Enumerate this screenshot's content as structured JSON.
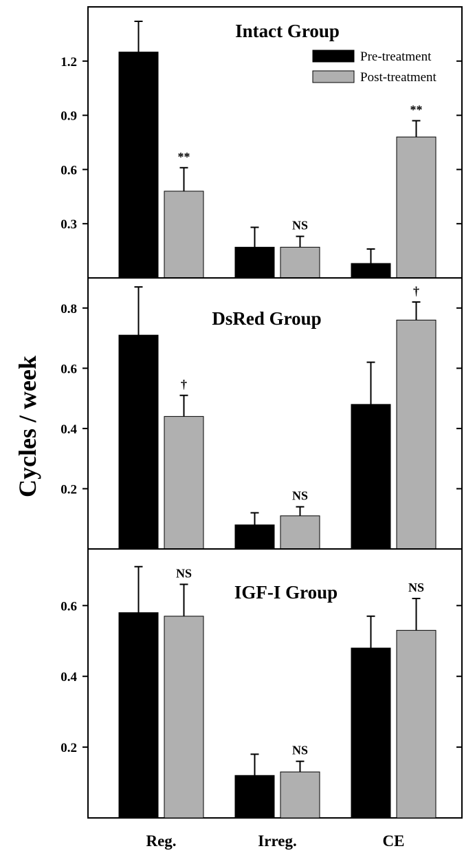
{
  "chart_data": {
    "type": "bar",
    "ylabel": "Cycles / week",
    "categories": [
      "Reg.",
      "Irreg.",
      "CE"
    ],
    "legend": {
      "placement": "top-right",
      "entries": [
        {
          "name": "Pre-treatment",
          "color": "#000000"
        },
        {
          "name": "Post-treatment",
          "color": "#b0b0b0"
        }
      ]
    },
    "panels": [
      {
        "title": "Intact Group",
        "ylim": [
          0,
          1.5
        ],
        "yticks": [
          0.3,
          0.6,
          0.9,
          1.2
        ],
        "ytick_labels": [
          "0.3",
          "0.6",
          "0.9",
          "1.2"
        ],
        "series": [
          {
            "name": "Pre-treatment",
            "values": [
              1.25,
              0.17,
              0.08
            ],
            "errors": [
              0.17,
              0.11,
              0.08
            ]
          },
          {
            "name": "Post-treatment",
            "values": [
              0.48,
              0.17,
              0.78
            ],
            "errors": [
              0.13,
              0.06,
              0.09
            ]
          }
        ],
        "annotations": [
          "**",
          "NS",
          "**"
        ]
      },
      {
        "title": "DsRed Group",
        "ylim": [
          0,
          0.9
        ],
        "yticks": [
          0.2,
          0.4,
          0.6,
          0.8
        ],
        "ytick_labels": [
          "0.2",
          "0.4",
          "0.6",
          "0.8"
        ],
        "series": [
          {
            "name": "Pre-treatment",
            "values": [
              0.71,
              0.08,
              0.48
            ],
            "errors": [
              0.16,
              0.04,
              0.14
            ]
          },
          {
            "name": "Post-treatment",
            "values": [
              0.44,
              0.11,
              0.76
            ],
            "errors": [
              0.07,
              0.03,
              0.06
            ]
          }
        ],
        "annotations": [
          "†",
          "NS",
          "†"
        ]
      },
      {
        "title": "IGF-I Group",
        "ylim": [
          0,
          0.76
        ],
        "yticks": [
          0.2,
          0.4,
          0.6
        ],
        "ytick_labels": [
          "0.2",
          "0.4",
          "0.6"
        ],
        "series": [
          {
            "name": "Pre-treatment",
            "values": [
              0.58,
              0.12,
              0.48
            ],
            "errors": [
              0.13,
              0.06,
              0.09
            ]
          },
          {
            "name": "Post-treatment",
            "values": [
              0.57,
              0.13,
              0.53
            ],
            "errors": [
              0.09,
              0.03,
              0.09
            ]
          }
        ],
        "annotations": [
          "NS",
          "NS",
          "NS"
        ]
      }
    ]
  }
}
